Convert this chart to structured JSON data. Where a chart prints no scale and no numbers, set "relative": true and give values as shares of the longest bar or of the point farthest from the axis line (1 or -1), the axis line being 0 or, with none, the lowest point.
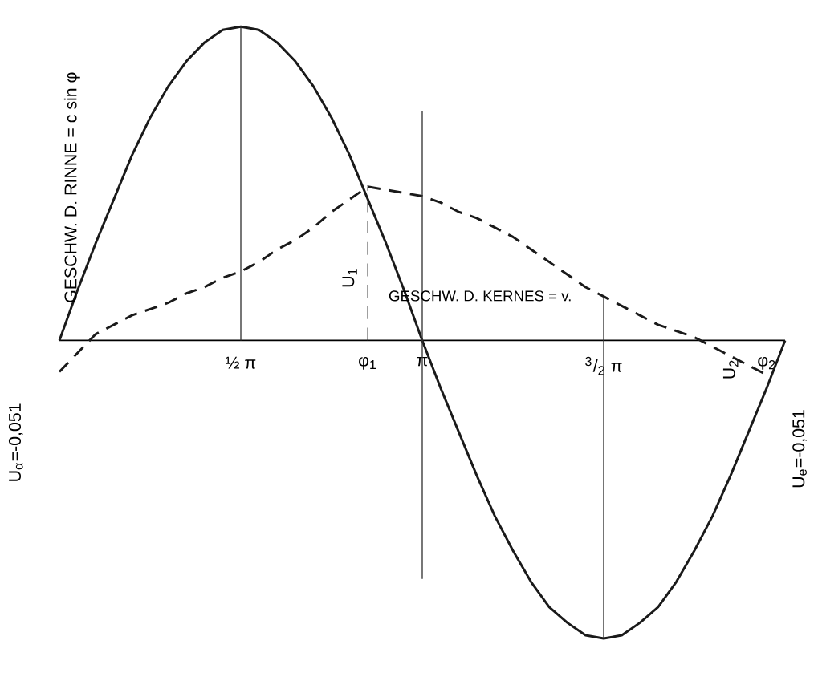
{
  "chart_data": {
    "type": "line",
    "relative": true,
    "categories": [
      null,
      null,
      null,
      null,
      null,
      null,
      null,
      null,
      null,
      null,
      "½ π",
      null,
      null,
      null,
      null,
      null,
      null,
      "φ$_{1}$",
      null,
      null,
      "π",
      null,
      null,
      null,
      null,
      null,
      null,
      null,
      null,
      null,
      "$^{3}$/$_{2}$ π",
      null,
      null,
      null,
      null,
      null,
      null,
      null,
      null,
      "φ$_{2}$",
      null
    ],
    "series": [
      {
        "color": "#1a1a1a",
        "line_style": "solid",
        "values": [
          0,
          0.16,
          0.31,
          0.45,
          0.59,
          0.71,
          0.81,
          0.89,
          0.95,
          0.99,
          1,
          0.99,
          0.95,
          0.89,
          0.81,
          0.71,
          0.59,
          0.45,
          0.31,
          0.16,
          0,
          -0.15,
          -0.29,
          -0.43,
          -0.56,
          -0.67,
          -0.77,
          -0.85,
          -0.9,
          -0.94,
          -0.95,
          -0.94,
          -0.9,
          -0.85,
          -0.77,
          -0.67,
          -0.56,
          -0.43,
          -0.29,
          -0.15,
          0
        ]
      },
      {
        "color": "#1a1a1a",
        "line_style": "dashed",
        "values": [
          -0.1,
          -0.04,
          0.02,
          0.05,
          0.08,
          0.1,
          0.12,
          0.15,
          0.17,
          0.2,
          0.22,
          0.25,
          0.29,
          0.32,
          0.36,
          0.41,
          0.45,
          0.49,
          0.48,
          0.47,
          0.46,
          0.44,
          0.41,
          0.39,
          0.36,
          0.33,
          0.29,
          0.25,
          0.21,
          0.17,
          0.14,
          0.11,
          0.08,
          0.05,
          0.03,
          0.01,
          -0.02,
          -0.05,
          -0.08,
          -0.11,
          null
        ]
      }
    ],
    "ref_lines": [
      {
        "axis": "x",
        "value": "½ π",
        "color": "#333333",
        "line_style": "solid"
      },
      {
        "axis": "x",
        "value": "φ$_{1}$",
        "color": "#333333",
        "line_style": "dashed"
      },
      {
        "axis": "x",
        "value": "π",
        "color": "#333333",
        "line_style": "solid"
      },
      {
        "axis": "x",
        "value": "$^{3}$/$_{2}$ π",
        "color": "#333333",
        "line_style": "solid"
      }
    ],
    "annotations": [
      "GESCHW. D. KERNES = v.",
      "GESCHW. D. RINNE = c sin φ",
      "U$_{1}$",
      "U$_{α}$=-0,051",
      "U$_{2}$",
      "U$_{e}$=-0,051"
    ]
  }
}
